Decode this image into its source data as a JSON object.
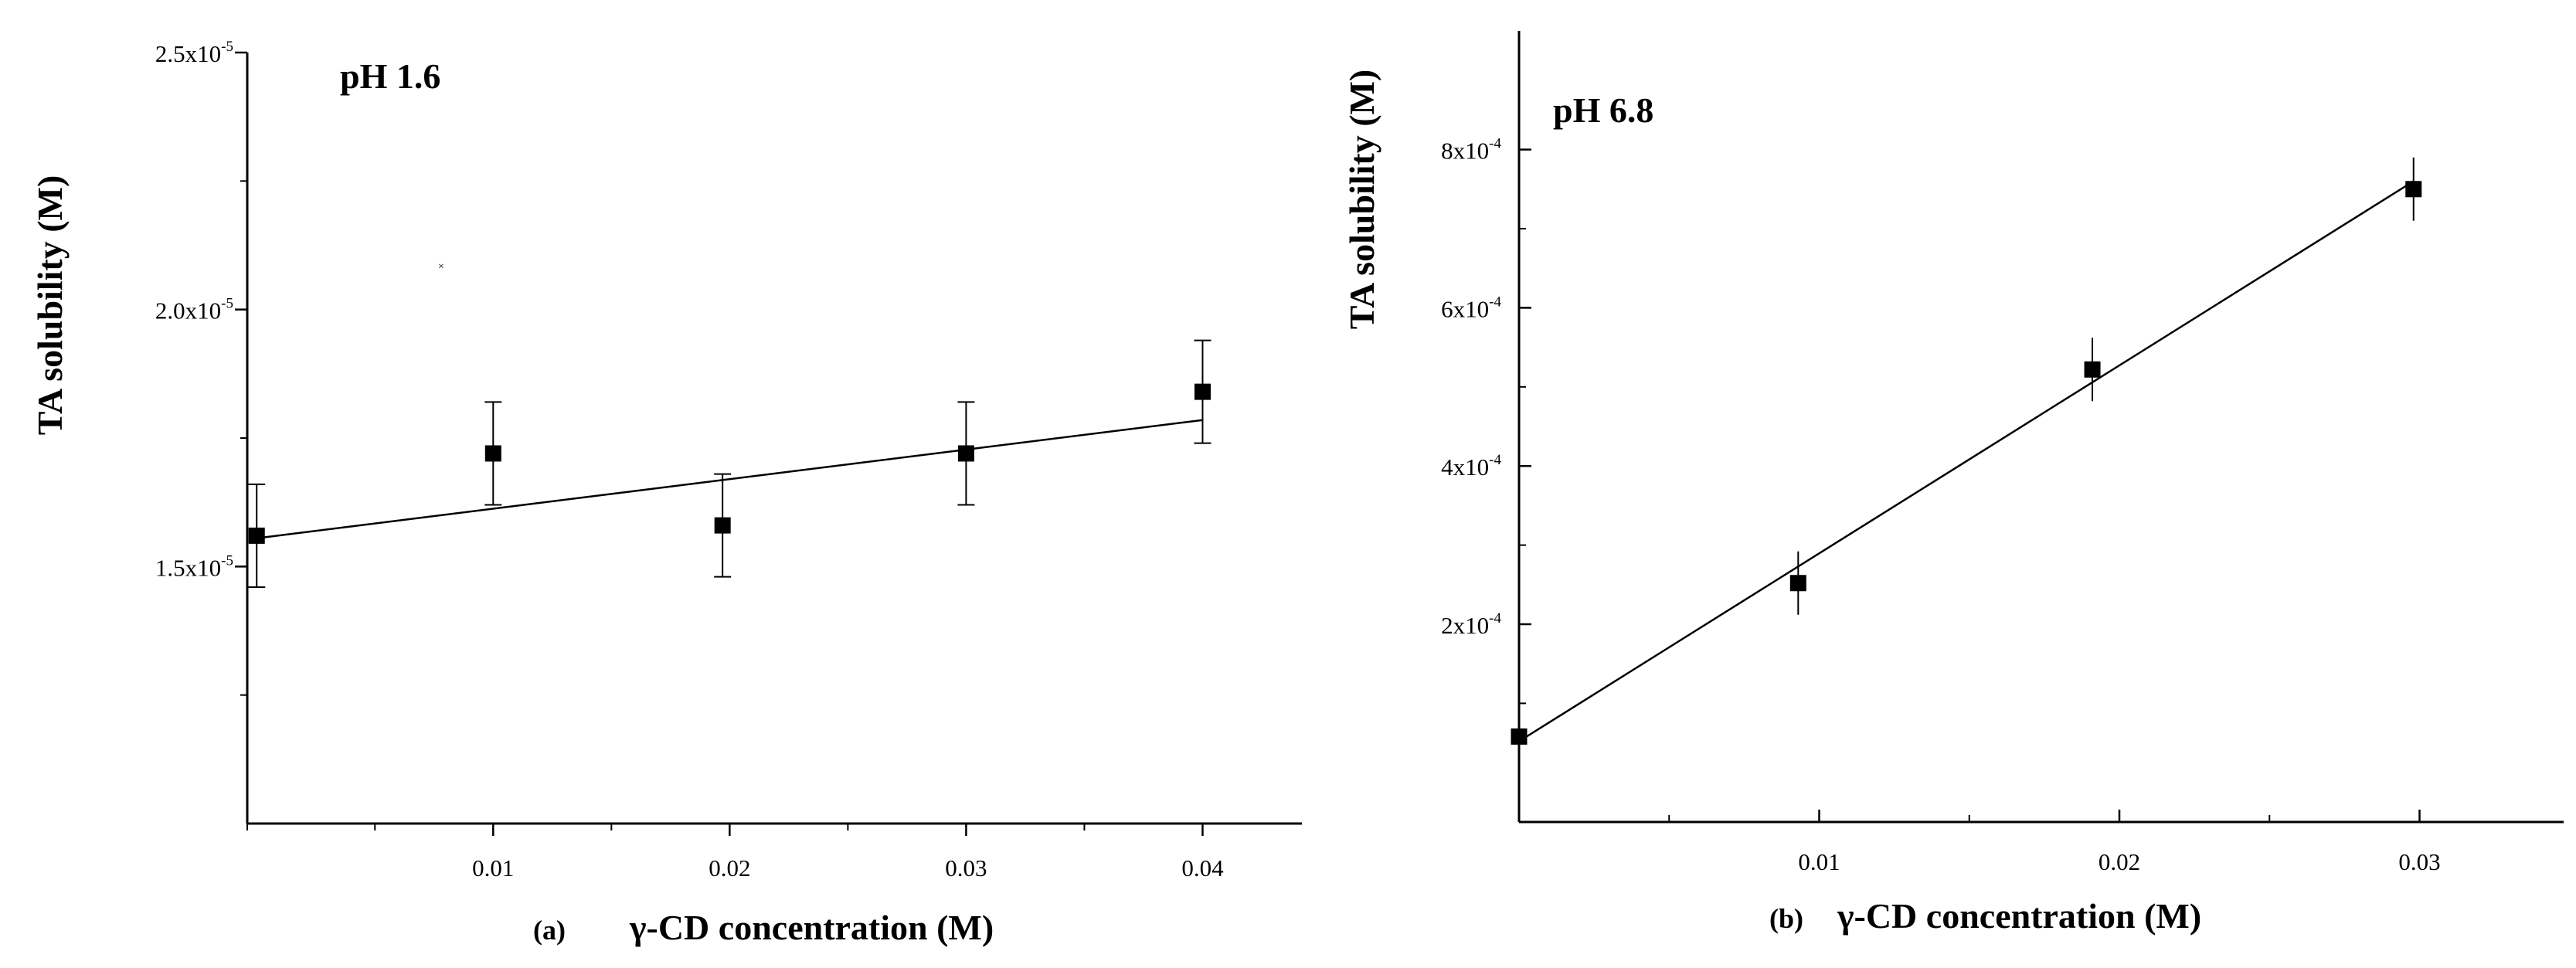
{
  "chart_data": [
    {
      "type": "scatter",
      "panel_label": "(a)",
      "annotation": "pH 1.6",
      "xlabel": "γ-CD concentration (M)",
      "ylabel": "TA solubility (M)",
      "xlim": [
        -0.0004,
        0.0442
      ],
      "ylim": [
        1e-05,
        2.5e-05
      ],
      "x_ticks": [
        {
          "value": 0.01,
          "label": "0.01"
        },
        {
          "value": 0.02,
          "label": "0.02"
        },
        {
          "value": 0.03,
          "label": "0.03"
        },
        {
          "value": 0.04,
          "label": "0.04"
        }
      ],
      "x_minor_ticks": [
        0.005,
        0.015,
        0.025,
        0.035
      ],
      "y_ticks": [
        {
          "value": 1.5e-05,
          "mantissa": "1.5x10",
          "exponent": "-5"
        },
        {
          "value": 2e-05,
          "mantissa": "2.0x10",
          "exponent": "-5"
        },
        {
          "value": 2.5e-05,
          "mantissa": "2.5x10",
          "exponent": "-5"
        }
      ],
      "y_minor_ticks": [
        1.25e-05,
        1.75e-05,
        2.25e-05
      ],
      "series": [
        {
          "name": "data",
          "marker": "square",
          "x": [
            0.0,
            0.01,
            0.0197,
            0.03,
            0.04
          ],
          "y": [
            1.56e-05,
            1.72e-05,
            1.58e-05,
            1.72e-05,
            1.84e-05
          ],
          "err": [
            1e-06,
            1e-06,
            1e-06,
            1e-06,
            1e-06
          ]
        }
      ],
      "fit": {
        "x": [
          0.0,
          0.04
        ],
        "y": [
          1.555e-05,
          1.785e-05
        ]
      },
      "stray_point": {
        "x": 0.0078,
        "y": 2.085e-05
      }
    },
    {
      "type": "scatter",
      "panel_label": "(b)",
      "annotation": "pH 6.8",
      "xlabel": "γ-CD concentration (M)",
      "ylabel": "TA solubility (M)",
      "xlim": [
        0.0,
        0.0348
      ],
      "ylim": [
        -5e-05,
        0.00095
      ],
      "x_ticks": [
        {
          "value": 0.01,
          "label": "0.01"
        },
        {
          "value": 0.02,
          "label": "0.02"
        },
        {
          "value": 0.03,
          "label": "0.03"
        }
      ],
      "x_minor_ticks": [
        0.005,
        0.015,
        0.025
      ],
      "y_ticks": [
        {
          "value": 0.0002,
          "mantissa": "2x10",
          "exponent": "-4"
        },
        {
          "value": 0.0004,
          "mantissa": "4x10",
          "exponent": "-4"
        },
        {
          "value": 0.0006,
          "mantissa": "6x10",
          "exponent": "-4"
        },
        {
          "value": 0.0008,
          "mantissa": "8x10",
          "exponent": "-4"
        }
      ],
      "y_minor_ticks": [
        0.0001,
        0.0003,
        0.0005,
        0.0007
      ],
      "series": [
        {
          "name": "data",
          "marker": "square",
          "x": [
            0.0,
            0.0093,
            0.0191,
            0.0298
          ],
          "y": [
            5.8e-05,
            0.000252,
            0.000522,
            0.00075
          ],
          "err": [
            0.0,
            4e-05,
            4e-05,
            4e-05
          ]
        }
      ],
      "fit": {
        "x": [
          0.0,
          0.0298
        ],
        "y": [
          5.2e-05,
          0.00076
        ]
      }
    }
  ]
}
